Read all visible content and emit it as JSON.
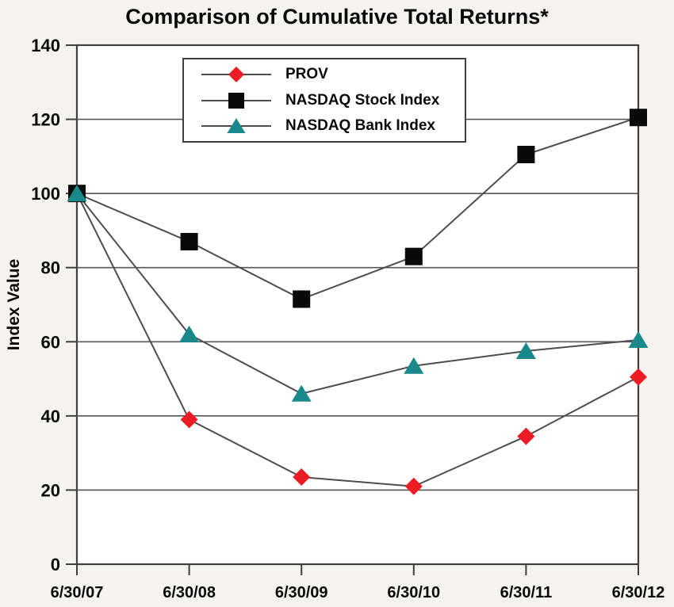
{
  "page": {
    "background": "#F5F3F0"
  },
  "chart_data": {
    "type": "line",
    "title": "Comparison of Cumulative Total Returns*",
    "ylabel": "Index Value",
    "xlabel": "",
    "x": [
      "6/30/07",
      "6/30/08",
      "6/30/09",
      "6/30/10",
      "6/30/11",
      "6/30/12"
    ],
    "ylim": [
      0,
      140
    ],
    "ytick_step": 20,
    "grid": true,
    "legend_position": "top-inside",
    "series": [
      {
        "name": "PROV",
        "marker": "diamond",
        "marker_color": "#EC1C24",
        "values": [
          100,
          39,
          23.5,
          21,
          34.5,
          50.5
        ]
      },
      {
        "name": "NASDAQ Stock Index",
        "marker": "square",
        "marker_color": "#0A0A0A",
        "values": [
          100,
          87,
          71.5,
          83,
          110.5,
          120.5
        ]
      },
      {
        "name": "NASDAQ Bank Index",
        "marker": "triangle",
        "marker_color": "#19898C",
        "values": [
          100,
          62,
          46,
          53.5,
          57.5,
          60.5
        ]
      }
    ],
    "line_color": "#4D4D4D",
    "grid_color": "#565656",
    "axis_color": "#3F3F3F",
    "plot_bg": "#FFFFFF"
  }
}
